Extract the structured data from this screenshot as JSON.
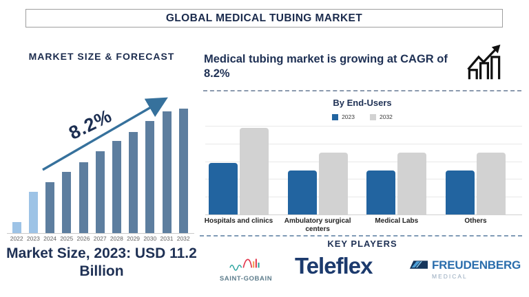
{
  "header": {
    "title": "GLOBAL MEDICAL TUBING MARKET"
  },
  "left_panel": {
    "section_title": "MARKET SIZE & FORECAST",
    "cagr_label": "8.2%",
    "caption": "Market Size, 2023: USD 11.2 Billion"
  },
  "right_panel": {
    "headline": "Medical tubing market is growing at CAGR of 8.2%",
    "end_users": {
      "title": "By End-Users"
    },
    "key_players": {
      "title": "KEY PLAYERS",
      "saint_gobain": "SAINT-GOBAIN",
      "teleflex": "Teleflex",
      "freudenberg": "FREUDENBERG",
      "freudenberg_sub": "MEDICAL"
    }
  },
  "colors": {
    "navy_text": "#1E3054",
    "forecast_bar": "#5D7E9F",
    "forecast_bar_highlight": "#9DC3E6",
    "arrow": "#36719C",
    "endusers_2023": "#2264A0",
    "endusers_2032": "#D2D2D2",
    "gridline": "#E8E8E8"
  },
  "chart_data": [
    {
      "type": "bar",
      "title": "MARKET SIZE & FORECAST",
      "categories": [
        "2022",
        "2023",
        "2024",
        "2025",
        "2026",
        "2027",
        "2028",
        "2029",
        "2030",
        "2031",
        "2032"
      ],
      "values": [
        9,
        33,
        41,
        49,
        57,
        66,
        74,
        81,
        90,
        98,
        100
      ],
      "values_note": "relative bar heights as % of tallest bar; no value axis shown",
      "annotation": "8.2% CAGR growth arrow",
      "highlight_categories": [
        "2022",
        "2023"
      ],
      "bar_color": "#5D7E9F",
      "highlight_color": "#9DC3E6",
      "xlabel": "",
      "ylabel": "",
      "grid": false
    },
    {
      "type": "bar",
      "title": "By End-Users",
      "categories": [
        "Hospitals and clinics",
        "Ambulatory surgical centers",
        "Medical Labs",
        "Others"
      ],
      "series": [
        {
          "name": "2023",
          "color": "#2264A0",
          "values": [
            2.9,
            2.5,
            2.5,
            2.5
          ]
        },
        {
          "name": "2032",
          "color": "#D2D2D2",
          "values": [
            4.9,
            3.5,
            3.5,
            3.5
          ]
        }
      ],
      "ylim": [
        0,
        5
      ],
      "values_note": "estimated from unlabeled gridlines (5 intervals)",
      "grid": true,
      "legend_position": "top"
    }
  ]
}
